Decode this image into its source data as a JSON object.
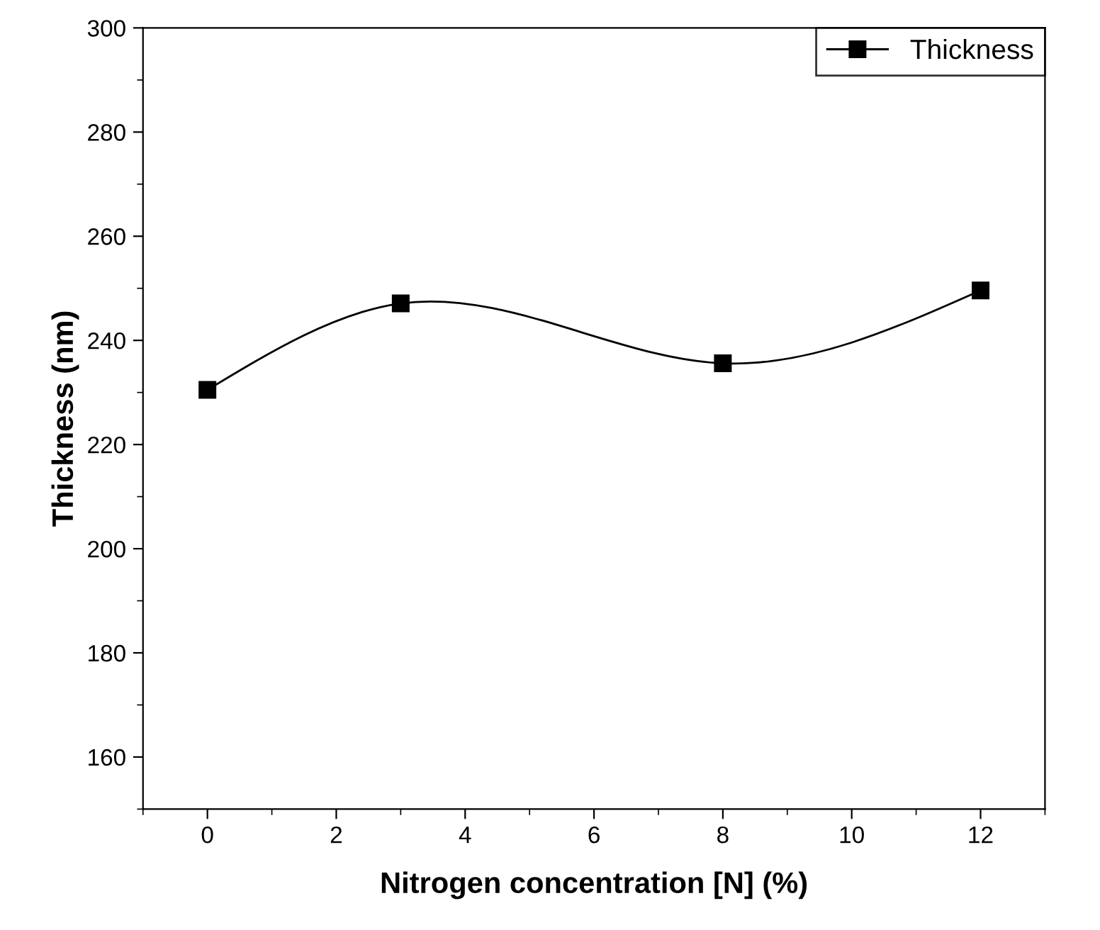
{
  "chart_data": {
    "type": "line",
    "xlabel": "Nitrogen concentration [N] (%)",
    "ylabel": "Thickness (nm)",
    "x": [
      0,
      3,
      8,
      12
    ],
    "series": [
      {
        "name": "Thickness",
        "color": "#000000",
        "values": [
          230.5,
          247.1,
          235.6,
          249.6
        ]
      }
    ],
    "xlim": [
      -1,
      13
    ],
    "xticks": [
      0,
      2,
      4,
      6,
      8,
      10,
      12
    ],
    "ylim": [
      150,
      300
    ],
    "yticks": [
      160,
      180,
      200,
      220,
      240,
      260,
      280,
      300
    ],
    "marker": "square",
    "line_style": "solid",
    "grid": false,
    "legend": "top right"
  }
}
